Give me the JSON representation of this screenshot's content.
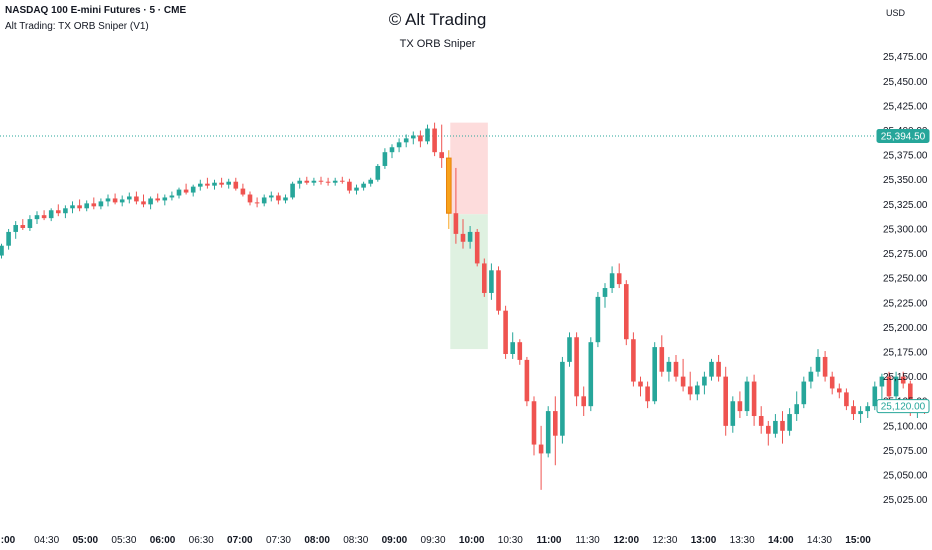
{
  "header": {
    "symbol": "NASDAQ 100 E-mini Futures · 5 · CME",
    "indicator": "Alt Trading: TX ORB Sniper (V1)",
    "watermark": "© Alt Trading",
    "subtitle": "TX ORB Sniper",
    "currency": "USD"
  },
  "colors": {
    "up": "#26a69a",
    "down": "#ef5350",
    "highlight": "#f7a21b",
    "stop_zone": "#fddcdc",
    "target_zone": "#dff1e1",
    "price_tag": "#26a69a"
  },
  "chart_data": {
    "type": "candlestick",
    "title": "NASDAQ 100 E-mini Futures · 5 · CME",
    "ylim": [
      25012.5,
      25495
    ],
    "y_ticks": [
      "25,475.00",
      "25,450.00",
      "25,425.00",
      "25,400.00",
      "25,375.00",
      "25,350.00",
      "25,325.00",
      "25,300.00",
      "25,275.00",
      "25,250.00",
      "25,225.00",
      "25,200.00",
      "25,175.00",
      "25,150.00",
      "25,125.00",
      "25,100.00",
      "25,075.00",
      "25,050.00",
      "25,025.00"
    ],
    "x_ticks": [
      {
        "label": ":00",
        "bold": true
      },
      {
        "label": "04:30",
        "bold": false
      },
      {
        "label": "05:00",
        "bold": true
      },
      {
        "label": "05:30",
        "bold": false
      },
      {
        "label": "06:00",
        "bold": true
      },
      {
        "label": "06:30",
        "bold": false
      },
      {
        "label": "07:00",
        "bold": true
      },
      {
        "label": "07:30",
        "bold": false
      },
      {
        "label": "08:00",
        "bold": true
      },
      {
        "label": "08:30",
        "bold": false
      },
      {
        "label": "09:00",
        "bold": true
      },
      {
        "label": "09:30",
        "bold": false
      },
      {
        "label": "10:00",
        "bold": true
      },
      {
        "label": "10:30",
        "bold": false
      },
      {
        "label": "11:00",
        "bold": true
      },
      {
        "label": "11:30",
        "bold": false
      },
      {
        "label": "12:00",
        "bold": true
      },
      {
        "label": "12:30",
        "bold": false
      },
      {
        "label": "13:00",
        "bold": true
      },
      {
        "label": "13:30",
        "bold": false
      },
      {
        "label": "14:00",
        "bold": true
      },
      {
        "label": "14:30",
        "bold": false
      },
      {
        "label": "15:00",
        "bold": true
      }
    ],
    "price_labels": [
      {
        "value": "25,394.50",
        "price": 25394.5,
        "style": "filled"
      },
      {
        "value": "25,120.00",
        "price": 25120,
        "style": "outline"
      }
    ],
    "orb_zones": {
      "stop": {
        "from": 25315,
        "to": 25408
      },
      "target": {
        "from": 25178,
        "to": 25315
      }
    },
    "candles": [
      {
        "o": 25273,
        "h": 25285,
        "l": 25270,
        "c": 25283
      },
      {
        "o": 25283,
        "h": 25300,
        "l": 25279,
        "c": 25297
      },
      {
        "o": 25297,
        "h": 25308,
        "l": 25290,
        "c": 25304
      },
      {
        "o": 25304,
        "h": 25310,
        "l": 25299,
        "c": 25301
      },
      {
        "o": 25301,
        "h": 25314,
        "l": 25298,
        "c": 25310
      },
      {
        "o": 25310,
        "h": 25318,
        "l": 25305,
        "c": 25314
      },
      {
        "o": 25314,
        "h": 25319,
        "l": 25309,
        "c": 25311
      },
      {
        "o": 25311,
        "h": 25321,
        "l": 25308,
        "c": 25319
      },
      {
        "o": 25319,
        "h": 25325,
        "l": 25313,
        "c": 25316
      },
      {
        "o": 25316,
        "h": 25324,
        "l": 25311,
        "c": 25321
      },
      {
        "o": 25321,
        "h": 25328,
        "l": 25316,
        "c": 25324
      },
      {
        "o": 25324,
        "h": 25330,
        "l": 25318,
        "c": 25321
      },
      {
        "o": 25321,
        "h": 25329,
        "l": 25318,
        "c": 25326
      },
      {
        "o": 25326,
        "h": 25332,
        "l": 25320,
        "c": 25323
      },
      {
        "o": 25323,
        "h": 25331,
        "l": 25320,
        "c": 25328
      },
      {
        "o": 25328,
        "h": 25335,
        "l": 25323,
        "c": 25331
      },
      {
        "o": 25331,
        "h": 25336,
        "l": 25325,
        "c": 25327
      },
      {
        "o": 25327,
        "h": 25334,
        "l": 25323,
        "c": 25330
      },
      {
        "o": 25330,
        "h": 25337,
        "l": 25326,
        "c": 25333
      },
      {
        "o": 25333,
        "h": 25338,
        "l": 25325,
        "c": 25328
      },
      {
        "o": 25328,
        "h": 25335,
        "l": 25322,
        "c": 25325
      },
      {
        "o": 25325,
        "h": 25333,
        "l": 25320,
        "c": 25331
      },
      {
        "o": 25331,
        "h": 25336,
        "l": 25327,
        "c": 25329
      },
      {
        "o": 25329,
        "h": 25335,
        "l": 25324,
        "c": 25332
      },
      {
        "o": 25332,
        "h": 25338,
        "l": 25329,
        "c": 25334
      },
      {
        "o": 25334,
        "h": 25342,
        "l": 25331,
        "c": 25340
      },
      {
        "o": 25340,
        "h": 25346,
        "l": 25335,
        "c": 25337
      },
      {
        "o": 25337,
        "h": 25345,
        "l": 25333,
        "c": 25343
      },
      {
        "o": 25343,
        "h": 25350,
        "l": 25339,
        "c": 25346
      },
      {
        "o": 25346,
        "h": 25352,
        "l": 25341,
        "c": 25344
      },
      {
        "o": 25344,
        "h": 25350,
        "l": 25340,
        "c": 25347
      },
      {
        "o": 25347,
        "h": 25352,
        "l": 25342,
        "c": 25345
      },
      {
        "o": 25345,
        "h": 25351,
        "l": 25341,
        "c": 25348
      },
      {
        "o": 25348,
        "h": 25352,
        "l": 25339,
        "c": 25341
      },
      {
        "o": 25341,
        "h": 25346,
        "l": 25333,
        "c": 25335
      },
      {
        "o": 25335,
        "h": 25338,
        "l": 25324,
        "c": 25327
      },
      {
        "o": 25327,
        "h": 25332,
        "l": 25322,
        "c": 25326
      },
      {
        "o": 25326,
        "h": 25335,
        "l": 25323,
        "c": 25332
      },
      {
        "o": 25332,
        "h": 25338,
        "l": 25328,
        "c": 25334
      },
      {
        "o": 25334,
        "h": 25337,
        "l": 25325,
        "c": 25329
      },
      {
        "o": 25329,
        "h": 25335,
        "l": 25326,
        "c": 25332
      },
      {
        "o": 25332,
        "h": 25348,
        "l": 25330,
        "c": 25346
      },
      {
        "o": 25346,
        "h": 25352,
        "l": 25341,
        "c": 25349
      },
      {
        "o": 25349,
        "h": 25353,
        "l": 25345,
        "c": 25347
      },
      {
        "o": 25347,
        "h": 25352,
        "l": 25344,
        "c": 25349
      },
      {
        "o": 25349,
        "h": 25353,
        "l": 25345,
        "c": 25348
      },
      {
        "o": 25348,
        "h": 25352,
        "l": 25344,
        "c": 25347
      },
      {
        "o": 25347,
        "h": 25352,
        "l": 25344,
        "c": 25349
      },
      {
        "o": 25349,
        "h": 25353,
        "l": 25346,
        "c": 25348
      },
      {
        "o": 25348,
        "h": 25351,
        "l": 25336,
        "c": 25339
      },
      {
        "o": 25339,
        "h": 25345,
        "l": 25335,
        "c": 25342
      },
      {
        "o": 25342,
        "h": 25348,
        "l": 25339,
        "c": 25346
      },
      {
        "o": 25346,
        "h": 25352,
        "l": 25343,
        "c": 25350
      },
      {
        "o": 25350,
        "h": 25366,
        "l": 25348,
        "c": 25364
      },
      {
        "o": 25364,
        "h": 25382,
        "l": 25361,
        "c": 25378
      },
      {
        "o": 25378,
        "h": 25386,
        "l": 25372,
        "c": 25383
      },
      {
        "o": 25383,
        "h": 25392,
        "l": 25378,
        "c": 25388
      },
      {
        "o": 25388,
        "h": 25396,
        "l": 25383,
        "c": 25392
      },
      {
        "o": 25392,
        "h": 25399,
        "l": 25386,
        "c": 25395
      },
      {
        "o": 25395,
        "h": 25400,
        "l": 25383,
        "c": 25389
      },
      {
        "o": 25389,
        "h": 25406,
        "l": 25386,
        "c": 25402
      },
      {
        "o": 25402,
        "h": 25408,
        "l": 25374,
        "c": 25378
      },
      {
        "o": 25378,
        "h": 25406,
        "l": 25362,
        "c": 25372
      },
      {
        "o": 25372,
        "h": 25380,
        "l": 25300,
        "c": 25316,
        "hl": true
      },
      {
        "o": 25316,
        "h": 25362,
        "l": 25285,
        "c": 25295
      },
      {
        "o": 25295,
        "h": 25310,
        "l": 25280,
        "c": 25287
      },
      {
        "o": 25287,
        "h": 25303,
        "l": 25280,
        "c": 25297
      },
      {
        "o": 25297,
        "h": 25300,
        "l": 25262,
        "c": 25265
      },
      {
        "o": 25265,
        "h": 25270,
        "l": 25231,
        "c": 25235
      },
      {
        "o": 25235,
        "h": 25265,
        "l": 25228,
        "c": 25258
      },
      {
        "o": 25258,
        "h": 25262,
        "l": 25213,
        "c": 25217
      },
      {
        "o": 25217,
        "h": 25222,
        "l": 25168,
        "c": 25173
      },
      {
        "o": 25173,
        "h": 25195,
        "l": 25168,
        "c": 25185
      },
      {
        "o": 25185,
        "h": 25188,
        "l": 25162,
        "c": 25167
      },
      {
        "o": 25167,
        "h": 25170,
        "l": 25120,
        "c": 25125
      },
      {
        "o": 25125,
        "h": 25130,
        "l": 25070,
        "c": 25081
      },
      {
        "o": 25081,
        "h": 25100,
        "l": 25035,
        "c": 25072
      },
      {
        "o": 25072,
        "h": 25120,
        "l": 25068,
        "c": 25115
      },
      {
        "o": 25115,
        "h": 25130,
        "l": 25060,
        "c": 25090
      },
      {
        "o": 25090,
        "h": 25170,
        "l": 25082,
        "c": 25165
      },
      {
        "o": 25165,
        "h": 25195,
        "l": 25160,
        "c": 25190
      },
      {
        "o": 25190,
        "h": 25195,
        "l": 25120,
        "c": 25130
      },
      {
        "o": 25130,
        "h": 25140,
        "l": 25110,
        "c": 25120
      },
      {
        "o": 25120,
        "h": 25190,
        "l": 25115,
        "c": 25185
      },
      {
        "o": 25185,
        "h": 25236,
        "l": 25180,
        "c": 25231
      },
      {
        "o": 25231,
        "h": 25245,
        "l": 25220,
        "c": 25240
      },
      {
        "o": 25240,
        "h": 25262,
        "l": 25235,
        "c": 25255
      },
      {
        "o": 25255,
        "h": 25265,
        "l": 25240,
        "c": 25244
      },
      {
        "o": 25244,
        "h": 25248,
        "l": 25182,
        "c": 25188
      },
      {
        "o": 25188,
        "h": 25195,
        "l": 25140,
        "c": 25145
      },
      {
        "o": 25145,
        "h": 25150,
        "l": 25130,
        "c": 25140
      },
      {
        "o": 25140,
        "h": 25145,
        "l": 25118,
        "c": 25125
      },
      {
        "o": 25125,
        "h": 25185,
        "l": 25122,
        "c": 25180
      },
      {
        "o": 25180,
        "h": 25192,
        "l": 25150,
        "c": 25155
      },
      {
        "o": 25155,
        "h": 25170,
        "l": 25145,
        "c": 25165
      },
      {
        "o": 25165,
        "h": 25172,
        "l": 25145,
        "c": 25150
      },
      {
        "o": 25150,
        "h": 25168,
        "l": 25135,
        "c": 25140
      },
      {
        "o": 25140,
        "h": 25155,
        "l": 25126,
        "c": 25132
      },
      {
        "o": 25132,
        "h": 25145,
        "l": 25126,
        "c": 25141
      },
      {
        "o": 25141,
        "h": 25155,
        "l": 25132,
        "c": 25150
      },
      {
        "o": 25150,
        "h": 25168,
        "l": 25146,
        "c": 25165
      },
      {
        "o": 25165,
        "h": 25172,
        "l": 25145,
        "c": 25150
      },
      {
        "o": 25150,
        "h": 25160,
        "l": 25090,
        "c": 25100
      },
      {
        "o": 25100,
        "h": 25130,
        "l": 25093,
        "c": 25125
      },
      {
        "o": 25125,
        "h": 25135,
        "l": 25108,
        "c": 25115
      },
      {
        "o": 25115,
        "h": 25150,
        "l": 25110,
        "c": 25145
      },
      {
        "o": 25145,
        "h": 25152,
        "l": 25100,
        "c": 25110
      },
      {
        "o": 25110,
        "h": 25120,
        "l": 25092,
        "c": 25100
      },
      {
        "o": 25100,
        "h": 25105,
        "l": 25080,
        "c": 25092
      },
      {
        "o": 25092,
        "h": 25112,
        "l": 25088,
        "c": 25105
      },
      {
        "o": 25105,
        "h": 25115,
        "l": 25082,
        "c": 25095
      },
      {
        "o": 25095,
        "h": 25118,
        "l": 25090,
        "c": 25112
      },
      {
        "o": 25112,
        "h": 25135,
        "l": 25105,
        "c": 25122
      },
      {
        "o": 25122,
        "h": 25150,
        "l": 25118,
        "c": 25145
      },
      {
        "o": 25145,
        "h": 25160,
        "l": 25138,
        "c": 25155
      },
      {
        "o": 25155,
        "h": 25178,
        "l": 25150,
        "c": 25170
      },
      {
        "o": 25170,
        "h": 25176,
        "l": 25145,
        "c": 25150
      },
      {
        "o": 25150,
        "h": 25155,
        "l": 25132,
        "c": 25138
      },
      {
        "o": 25138,
        "h": 25143,
        "l": 25128,
        "c": 25134
      },
      {
        "o": 25134,
        "h": 25138,
        "l": 25116,
        "c": 25120
      },
      {
        "o": 25120,
        "h": 25126,
        "l": 25106,
        "c": 25112
      },
      {
        "o": 25112,
        "h": 25120,
        "l": 25103,
        "c": 25115
      },
      {
        "o": 25115,
        "h": 25124,
        "l": 25108,
        "c": 25120
      },
      {
        "o": 25120,
        "h": 25145,
        "l": 25116,
        "c": 25140
      },
      {
        "o": 25140,
        "h": 25153,
        "l": 25122,
        "c": 25150
      },
      {
        "o": 25150,
        "h": 25155,
        "l": 25125,
        "c": 25130
      },
      {
        "o": 25130,
        "h": 25155,
        "l": 25125,
        "c": 25150
      },
      {
        "o": 25150,
        "h": 25155,
        "l": 25138,
        "c": 25143
      },
      {
        "o": 25143,
        "h": 25146,
        "l": 25110,
        "c": 25115
      },
      {
        "o": 25115,
        "h": 25124,
        "l": 25108,
        "c": 25120
      },
      {
        "o": 25120,
        "h": 25126,
        "l": 25112,
        "c": 25118
      }
    ]
  }
}
